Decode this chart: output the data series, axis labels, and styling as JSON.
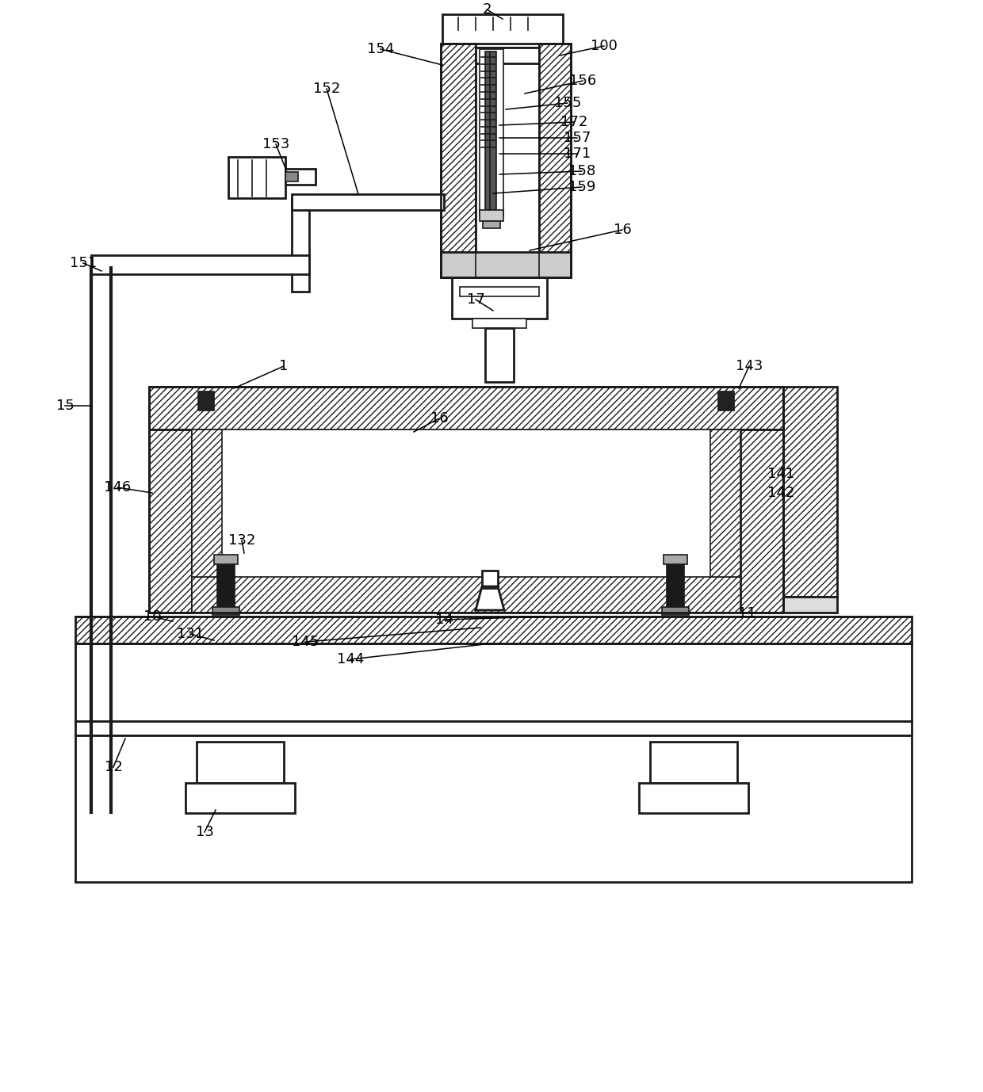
{
  "bg_color": "#ffffff",
  "line_color": "#1a1a1a",
  "font_size": 13
}
